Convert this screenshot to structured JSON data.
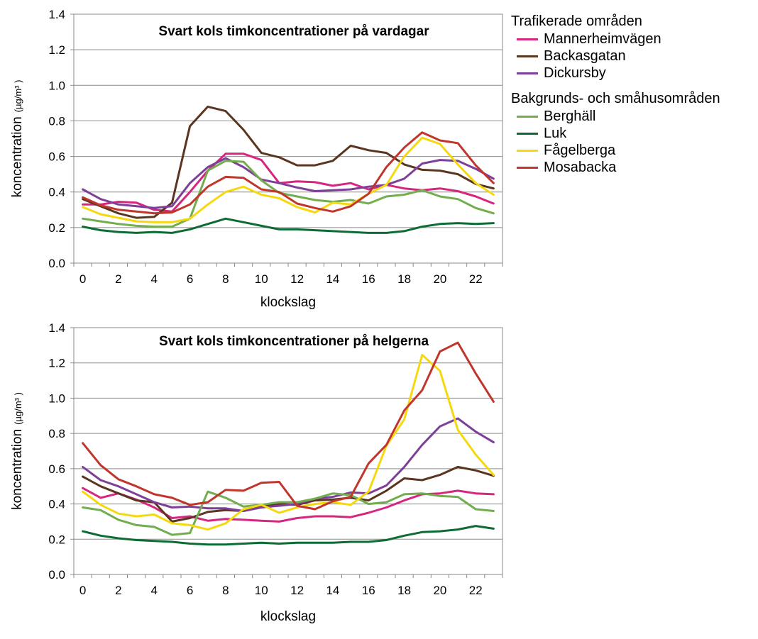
{
  "legend": {
    "group1_title": "Trafikerade områden",
    "group2_title": "Bakgrunds- och småhusområden"
  },
  "series_meta": [
    {
      "name": "Mannerheimvägen",
      "color": "#d6267f",
      "group": 1
    },
    {
      "name": "Backasgatan",
      "color": "#5a3520",
      "group": 1
    },
    {
      "name": "Dickursby",
      "color": "#7e3f98",
      "group": 1
    },
    {
      "name": "Berghäll",
      "color": "#72ad4e",
      "group": 2
    },
    {
      "name": "Luk",
      "color": "#0d6b34",
      "group": 2
    },
    {
      "name": "Fågelberga",
      "color": "#f6d80e",
      "group": 2
    },
    {
      "name": "Mosabacka",
      "color": "#c0362c",
      "group": 2
    }
  ],
  "chart_data": [
    {
      "type": "line",
      "title": "Svart kols timkoncentrationer på vardagar",
      "xlabel": "klockslag",
      "ylabel": "koncentration",
      "ylabel_unit": "(µg/m³ )",
      "x": [
        0,
        1,
        2,
        3,
        4,
        5,
        6,
        7,
        8,
        9,
        10,
        11,
        12,
        13,
        14,
        15,
        16,
        17,
        18,
        19,
        20,
        21,
        22,
        23
      ],
      "x_tick_labels": [
        "0",
        "2",
        "4",
        "6",
        "8",
        "10",
        "12",
        "14",
        "16",
        "18",
        "20",
        "22"
      ],
      "y_tick_labels": [
        "0.0",
        "0.2",
        "0.4",
        "0.6",
        "0.8",
        "1.0",
        "1.2",
        "1.4"
      ],
      "ylim": [
        0,
        1.4
      ],
      "grid": true,
      "series": [
        {
          "name": "Mannerheimvägen",
          "values": [
            0.33,
            0.33,
            0.345,
            0.34,
            0.3,
            0.29,
            0.4,
            0.52,
            0.615,
            0.615,
            0.58,
            0.45,
            0.46,
            0.455,
            0.435,
            0.45,
            0.415,
            0.44,
            0.42,
            0.41,
            0.42,
            0.405,
            0.375,
            0.335
          ]
        },
        {
          "name": "Backasgatan",
          "values": [
            0.36,
            0.32,
            0.28,
            0.255,
            0.26,
            0.34,
            0.77,
            0.88,
            0.855,
            0.75,
            0.62,
            0.595,
            0.55,
            0.55,
            0.575,
            0.66,
            0.635,
            0.62,
            0.555,
            0.525,
            0.52,
            0.5,
            0.445,
            0.42
          ]
        },
        {
          "name": "Dickursby",
          "values": [
            0.415,
            0.36,
            0.33,
            0.32,
            0.31,
            0.32,
            0.45,
            0.54,
            0.59,
            0.54,
            0.47,
            0.45,
            0.425,
            0.405,
            0.41,
            0.415,
            0.43,
            0.44,
            0.475,
            0.56,
            0.58,
            0.575,
            0.53,
            0.475
          ]
        },
        {
          "name": "Berghäll",
          "values": [
            0.25,
            0.235,
            0.22,
            0.21,
            0.205,
            0.205,
            0.25,
            0.52,
            0.575,
            0.57,
            0.465,
            0.395,
            0.375,
            0.355,
            0.345,
            0.355,
            0.335,
            0.375,
            0.385,
            0.41,
            0.375,
            0.36,
            0.31,
            0.28
          ]
        },
        {
          "name": "Luk",
          "values": [
            0.205,
            0.185,
            0.175,
            0.17,
            0.175,
            0.17,
            0.19,
            0.22,
            0.25,
            0.23,
            0.21,
            0.19,
            0.19,
            0.185,
            0.18,
            0.175,
            0.17,
            0.17,
            0.18,
            0.205,
            0.22,
            0.225,
            0.22,
            0.225
          ]
        },
        {
          "name": "Fågelberga",
          "values": [
            0.315,
            0.275,
            0.255,
            0.235,
            0.23,
            0.23,
            0.25,
            0.33,
            0.4,
            0.43,
            0.385,
            0.365,
            0.315,
            0.285,
            0.34,
            0.33,
            0.39,
            0.44,
            0.6,
            0.705,
            0.67,
            0.555,
            0.45,
            0.385
          ]
        },
        {
          "name": "Mosabacka",
          "values": [
            0.37,
            0.325,
            0.3,
            0.29,
            0.28,
            0.285,
            0.33,
            0.43,
            0.485,
            0.48,
            0.415,
            0.4,
            0.335,
            0.31,
            0.29,
            0.32,
            0.39,
            0.54,
            0.65,
            0.735,
            0.69,
            0.675,
            0.55,
            0.45
          ]
        }
      ]
    },
    {
      "type": "line",
      "title": "Svart kols timkoncentrationer på helgerna",
      "xlabel": "klockslag",
      "ylabel": "koncentration",
      "ylabel_unit": "(µg/m³ )",
      "x": [
        0,
        1,
        2,
        3,
        4,
        5,
        6,
        7,
        8,
        9,
        10,
        11,
        12,
        13,
        14,
        15,
        16,
        17,
        18,
        19,
        20,
        21,
        22,
        23
      ],
      "x_tick_labels": [
        "0",
        "2",
        "4",
        "6",
        "8",
        "10",
        "12",
        "14",
        "16",
        "18",
        "20",
        "22"
      ],
      "y_tick_labels": [
        "0.0",
        "0.2",
        "0.4",
        "0.6",
        "0.8",
        "1.0",
        "1.2",
        "1.4"
      ],
      "ylim": [
        0,
        1.4
      ],
      "grid": true,
      "series": [
        {
          "name": "Mannerheimvägen",
          "values": [
            0.49,
            0.435,
            0.46,
            0.425,
            0.38,
            0.32,
            0.33,
            0.305,
            0.315,
            0.31,
            0.305,
            0.3,
            0.32,
            0.33,
            0.33,
            0.325,
            0.35,
            0.38,
            0.42,
            0.455,
            0.46,
            0.475,
            0.46,
            0.455
          ]
        },
        {
          "name": "Backasgatan",
          "values": [
            0.555,
            0.5,
            0.46,
            0.42,
            0.41,
            0.3,
            0.32,
            0.355,
            0.365,
            0.36,
            0.385,
            0.4,
            0.395,
            0.42,
            0.425,
            0.435,
            0.42,
            0.475,
            0.545,
            0.535,
            0.565,
            0.61,
            0.59,
            0.56
          ]
        },
        {
          "name": "Dickursby",
          "values": [
            0.61,
            0.535,
            0.5,
            0.455,
            0.41,
            0.38,
            0.385,
            0.375,
            0.375,
            0.36,
            0.38,
            0.39,
            0.4,
            0.43,
            0.44,
            0.465,
            0.46,
            0.505,
            0.61,
            0.735,
            0.84,
            0.885,
            0.81,
            0.75
          ]
        },
        {
          "name": "Berghäll",
          "values": [
            0.38,
            0.365,
            0.31,
            0.28,
            0.27,
            0.225,
            0.235,
            0.47,
            0.435,
            0.385,
            0.395,
            0.41,
            0.41,
            0.43,
            0.46,
            0.45,
            0.4,
            0.41,
            0.455,
            0.46,
            0.445,
            0.44,
            0.37,
            0.36
          ]
        },
        {
          "name": "Luk",
          "values": [
            0.245,
            0.22,
            0.205,
            0.195,
            0.19,
            0.185,
            0.175,
            0.17,
            0.17,
            0.175,
            0.18,
            0.175,
            0.18,
            0.18,
            0.18,
            0.185,
            0.185,
            0.195,
            0.22,
            0.24,
            0.245,
            0.255,
            0.275,
            0.26
          ]
        },
        {
          "name": "Fågelberga",
          "values": [
            0.47,
            0.395,
            0.345,
            0.33,
            0.34,
            0.29,
            0.28,
            0.255,
            0.29,
            0.37,
            0.395,
            0.35,
            0.38,
            0.4,
            0.41,
            0.395,
            0.47,
            0.73,
            0.88,
            1.245,
            1.155,
            0.82,
            0.68,
            0.565
          ]
        },
        {
          "name": "Mosabacka",
          "values": [
            0.745,
            0.62,
            0.54,
            0.5,
            0.455,
            0.435,
            0.395,
            0.41,
            0.48,
            0.475,
            0.52,
            0.525,
            0.39,
            0.37,
            0.415,
            0.44,
            0.63,
            0.735,
            0.93,
            1.045,
            1.265,
            1.315,
            1.14,
            0.98
          ]
        }
      ]
    }
  ]
}
